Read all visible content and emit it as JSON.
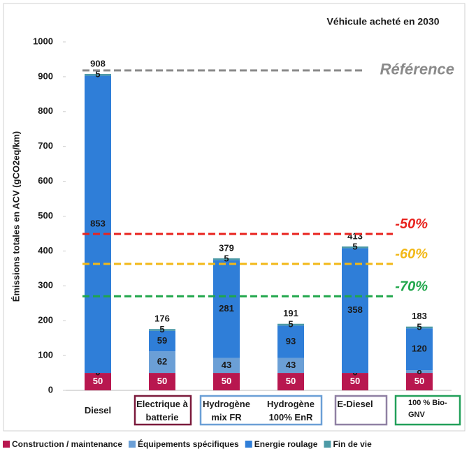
{
  "chart_data": {
    "type": "stacked_bar",
    "title": "Véhicule acheté en 2030",
    "y_label": "Émissions totales en ACV (gCO2eq/km)",
    "categories": [
      "Diesel",
      "Electrique à batterie",
      "Hydrogène mix FR",
      "Hydrogène 100% EnR",
      "E-Diesel",
      "100 % Bio-GNV"
    ],
    "series": [
      {
        "name": "Construction / maintenance",
        "color": "#b8174f",
        "values": [
          50,
          50,
          50,
          50,
          50,
          50
        ]
      },
      {
        "name": "Équipements spécifiques",
        "color": "#6b9fd6",
        "values": [
          0,
          62,
          43,
          43,
          0,
          8
        ]
      },
      {
        "name": "Energie roulage",
        "color": "#2f7ed8",
        "values": [
          853,
          59,
          281,
          93,
          358,
          120
        ]
      },
      {
        "name": "Fin de vie",
        "color": "#4d9aa6",
        "values": [
          5,
          5,
          5,
          5,
          5,
          5
        ]
      }
    ],
    "totals": [
      908,
      176,
      379,
      191,
      413,
      183
    ],
    "reference_lines": [
      {
        "label": "Référence",
        "value": 918,
        "color": "#8a8a8a"
      },
      {
        "label": "-50%",
        "value": 449,
        "color": "#e8231e"
      },
      {
        "label": "-60%",
        "value": 363,
        "color": "#f2b817"
      },
      {
        "label": "-70%",
        "value": 270,
        "color": "#1fa64a"
      }
    ],
    "ylim": [
      0,
      1000
    ],
    "yticks": [
      0,
      100,
      200,
      300,
      400,
      500,
      600,
      700,
      800,
      900,
      1000
    ]
  }
}
